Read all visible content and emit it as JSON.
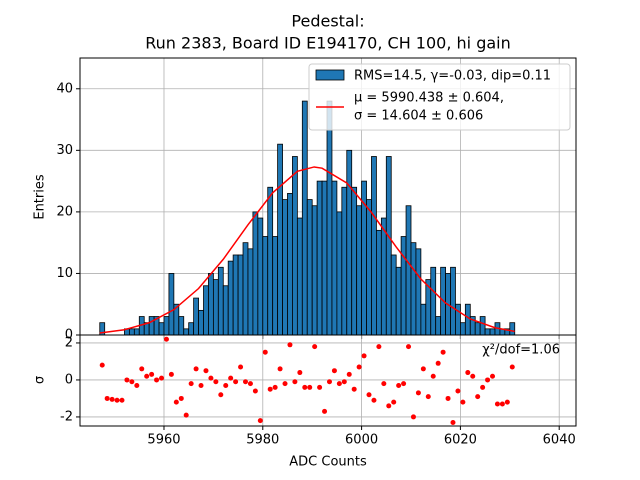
{
  "chart_data": [
    {
      "type": "histogram",
      "title": [
        "Pedestal:",
        "Run 2383, Board ID E194170, CH 100, hi gain"
      ],
      "ylabel": "Entries",
      "xlim": [
        5943,
        6043.4
      ],
      "xticks": [
        5960,
        5980,
        6000,
        6020,
        6040
      ],
      "ylim": [
        0,
        45
      ],
      "yticks": [
        0,
        10,
        20,
        30,
        40
      ],
      "grid": true,
      "legend": "upper right",
      "series": [
        {
          "name": "RMS=14.5, γ=-0.03, dip=0.11",
          "color": "#1f77b4",
          "bins": [
            5947,
            5948,
            5949,
            5950,
            5951,
            5952,
            5953,
            5954,
            5955,
            5956,
            5957,
            5958,
            5959,
            5960,
            5961,
            5962,
            5963,
            5964,
            5965,
            5966,
            5967,
            5968,
            5969,
            5970,
            5971,
            5972,
            5973,
            5974,
            5975,
            5976,
            5977,
            5978,
            5979,
            5980,
            5981,
            5982,
            5983,
            5984,
            5985,
            5986,
            5987,
            5988,
            5989,
            5990,
            5991,
            5992,
            5993,
            5994,
            5995,
            5996,
            5997,
            5998,
            5999,
            6000,
            6001,
            6002,
            6003,
            6004,
            6005,
            6006,
            6007,
            6008,
            6009,
            6010,
            6011,
            6012,
            6013,
            6014,
            6015,
            6016,
            6017,
            6018,
            6019,
            6020,
            6021,
            6022,
            6023,
            6024,
            6025,
            6026,
            6027,
            6028,
            6029,
            6030,
            6031
          ],
          "values": [
            2,
            0,
            0,
            0,
            0,
            1,
            1,
            1,
            3,
            2,
            3,
            3,
            2,
            3,
            10,
            5,
            3,
            1,
            2,
            6,
            4,
            8,
            10,
            9,
            11,
            8,
            12,
            13,
            13,
            15,
            14,
            20,
            19,
            16,
            24,
            16,
            31,
            22,
            23,
            29,
            19,
            38,
            22,
            21,
            25,
            25,
            38,
            25,
            20,
            24,
            30,
            24,
            21,
            25,
            22,
            29,
            17,
            19,
            29,
            13,
            11,
            16,
            21,
            15,
            14,
            5,
            9,
            11,
            3,
            11,
            10,
            11,
            5,
            2,
            5,
            3,
            2,
            3,
            1,
            1,
            2,
            1,
            1,
            2
          ]
        },
        {
          "name": [
            "μ = 5990.438 ± 0.604,",
            "σ = 14.604 ± 0.606"
          ],
          "color": "#ff0000",
          "x": [
            5947,
            5952,
            5957,
            5962,
            5967,
            5972,
            5977,
            5982,
            5987,
            5990.4,
            5992,
            5997,
            6002,
            6007,
            6012,
            6017,
            6022,
            6027,
            6031
          ],
          "values": [
            0.33,
            0.86,
            1.99,
            4.12,
            7.55,
            12.3,
            17.9,
            23.1,
            26.6,
            27.3,
            27.1,
            24.7,
            19.9,
            14.3,
            9.1,
            5.2,
            2.6,
            1.18,
            0.58
          ]
        }
      ]
    },
    {
      "type": "scatter",
      "ylabel": "σ",
      "xlabel": "ADC Counts",
      "annotation": "χ²/dof=1.06",
      "xlim": [
        5943,
        6043.4
      ],
      "xticks": [
        5960,
        5980,
        6000,
        6020,
        6040
      ],
      "ylim": [
        -2.49,
        2.43
      ],
      "yticks": [
        -2,
        0,
        2
      ],
      "grid": true,
      "color": "#ff0000",
      "x": [
        5947.5,
        5948.5,
        5949.5,
        5950.5,
        5951.5,
        5952.5,
        5953.5,
        5954.5,
        5955.5,
        5956.5,
        5957.5,
        5958.5,
        5959.5,
        5960.5,
        5961.5,
        5962.5,
        5963.5,
        5964.5,
        5965.5,
        5966.5,
        5967.5,
        5968.5,
        5969.5,
        5970.5,
        5971.5,
        5972.5,
        5973.5,
        5974.5,
        5975.5,
        5976.5,
        5977.5,
        5978.5,
        5979.5,
        5980.5,
        5981.5,
        5982.5,
        5983.5,
        5984.5,
        5985.5,
        5986.5,
        5987.5,
        5988.5,
        5989.5,
        5990.5,
        5991.5,
        5992.5,
        5993.5,
        5994.5,
        5995.5,
        5996.5,
        5997.5,
        5998.5,
        5999.5,
        6000.5,
        6001.5,
        6002.5,
        6003.5,
        6004.5,
        6005.5,
        6006.5,
        6007.5,
        6008.5,
        6009.5,
        6010.5,
        6011.5,
        6012.5,
        6013.5,
        6014.5,
        6015.5,
        6016.5,
        6017.5,
        6018.5,
        6019.5,
        6020.5,
        6021.5,
        6022.5,
        6023.5,
        6024.5,
        6025.5,
        6026.5,
        6027.5,
        6028.5,
        6029.5,
        6030.5
      ],
      "values": [
        0.8,
        -1.0,
        -1.05,
        -1.1,
        -1.1,
        0,
        -0.1,
        -0.3,
        0.6,
        0.2,
        0.3,
        0,
        0.1,
        2.2,
        0.3,
        -1.2,
        -1.0,
        -1.9,
        -0.2,
        0.6,
        -0.3,
        0.5,
        0.1,
        -0.1,
        -0.8,
        -0.3,
        0.1,
        -0.1,
        0.7,
        -0.1,
        -0.2,
        -0.6,
        -2.2,
        1.5,
        -0.5,
        -0.4,
        0.6,
        -0.2,
        1.9,
        -0.1,
        0.4,
        -0.4,
        -0.4,
        1.8,
        -0.4,
        -1.7,
        -0.1,
        0.5,
        -0.2,
        -0.1,
        0.3,
        -0.5,
        0.7,
        1.3,
        -0.8,
        -1.1,
        1.8,
        -0.2,
        -1.4,
        -1.2,
        -0.3,
        -0.2,
        1.8,
        -2.0,
        -0.7,
        0.6,
        -0.9,
        0.2,
        0.9,
        1.5,
        -1.0,
        -2.3,
        -0.6,
        -1.2,
        0.4,
        0.2,
        -0.9,
        -0.4,
        0.0,
        0.2,
        -1.3,
        -1.3,
        -1.2,
        0.7
      ]
    }
  ]
}
